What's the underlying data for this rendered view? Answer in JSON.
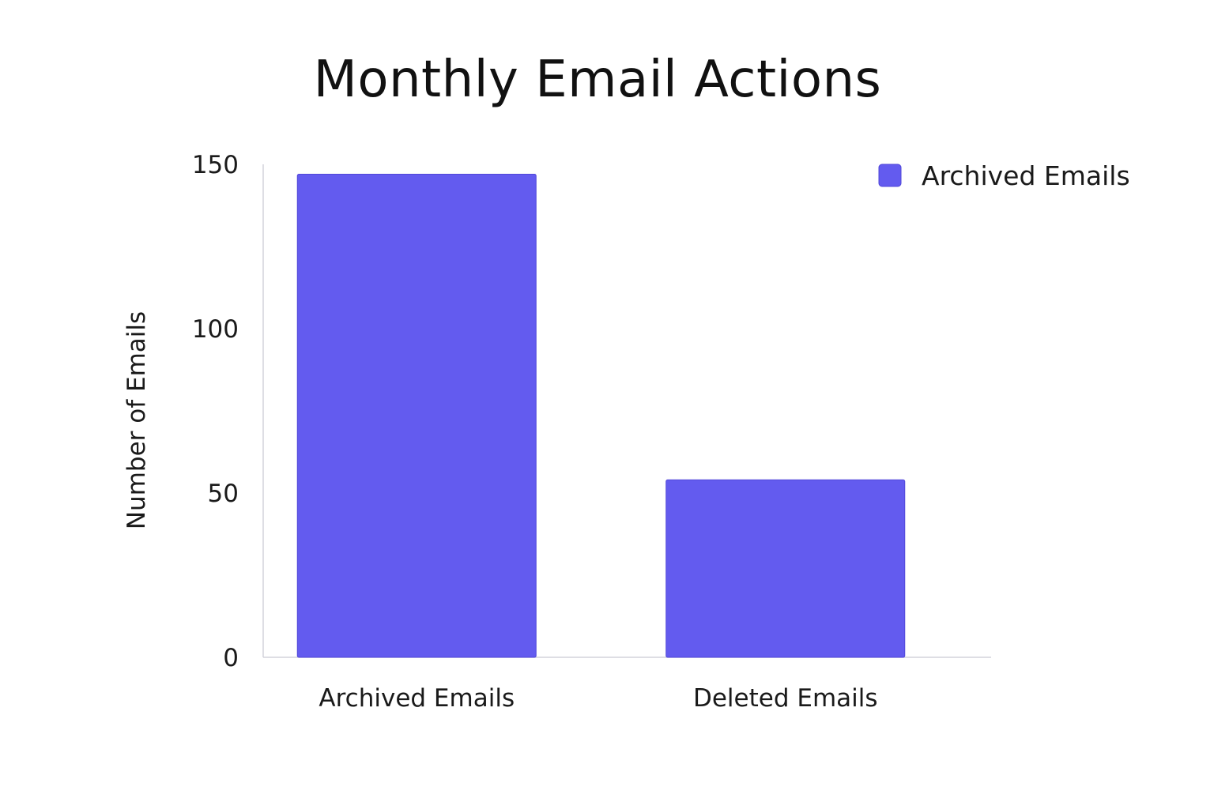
{
  "chart_data": {
    "type": "bar",
    "title": "Monthly Email Actions",
    "xlabel": "",
    "ylabel": "Number of Emails",
    "categories": [
      "Archived Emails",
      "Deleted Emails"
    ],
    "series": [
      {
        "name": "Archived Emails",
        "values": [
          147,
          54
        ]
      }
    ],
    "ylim": [
      0,
      150
    ],
    "yticks": [
      0,
      50,
      100,
      150
    ],
    "grid": false,
    "legend": "top-right",
    "colors": {
      "bar": "#635bef",
      "bar_edge": "#5147d9",
      "axis": "#d4d4dc"
    }
  }
}
